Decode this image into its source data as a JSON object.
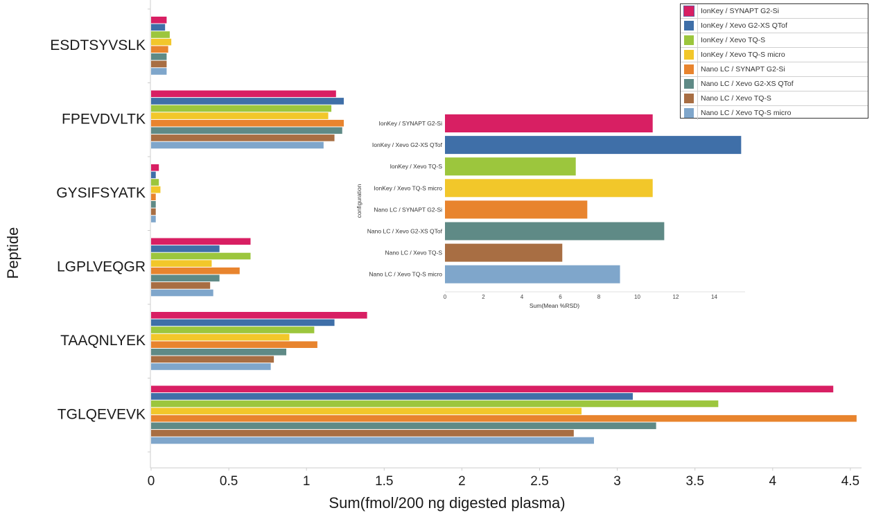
{
  "chart_data": [
    {
      "type": "bar",
      "orientation": "horizontal",
      "title": "",
      "xlabel": "Sum(fmol/200 ng digested plasma)",
      "ylabel": "Peptide",
      "xlim": [
        0,
        4.6
      ],
      "xticks": [
        0,
        0.5,
        1,
        1.5,
        2,
        2.5,
        3,
        3.5,
        4,
        4.5
      ],
      "xtick_labels": [
        "0",
        "0.5",
        "1",
        "1.5",
        "2",
        "2.5",
        "3",
        "3.5",
        "4",
        "4.5"
      ],
      "grid": false,
      "legend": "top-right",
      "categories": [
        "ESDTSYVSLK",
        "FPEVDVLTK",
        "GYSIFSYATK",
        "LGPLVEQGR",
        "TAAQNLYEK",
        "TGLQEVEVK"
      ],
      "series": [
        {
          "name": "IonKey / SYNAPT G2-Si",
          "color": "#d81f63",
          "values": [
            0.1,
            1.19,
            0.05,
            0.64,
            1.39,
            4.39
          ]
        },
        {
          "name": "IonKey / Xevo G2-XS QTof",
          "color": "#3f6fa8",
          "values": [
            0.09,
            1.24,
            0.03,
            0.44,
            1.18,
            3.1
          ]
        },
        {
          "name": "IonKey / Xevo TQ-S",
          "color": "#9cc63d",
          "values": [
            0.12,
            1.16,
            0.05,
            0.64,
            1.05,
            3.65
          ]
        },
        {
          "name": "IonKey / Xevo TQ-S micro",
          "color": "#f2c72a",
          "values": [
            0.13,
            1.14,
            0.06,
            0.39,
            0.89,
            2.77
          ]
        },
        {
          "name": "Nano LC / SYNAPT G2-Si",
          "color": "#e8842e",
          "values": [
            0.11,
            1.24,
            0.03,
            0.57,
            1.07,
            4.54
          ]
        },
        {
          "name": "Nano LC / Xevo G2-XS QTof",
          "color": "#5f8a86",
          "values": [
            0.1,
            1.23,
            0.03,
            0.44,
            0.87,
            3.25
          ]
        },
        {
          "name": "Nano LC / Xevo TQ-S",
          "color": "#a86e43",
          "values": [
            0.1,
            1.18,
            0.03,
            0.38,
            0.79,
            2.72
          ]
        },
        {
          "name": "Nano LC / Xevo TQ-S micro",
          "color": "#7fa6cb",
          "values": [
            0.1,
            1.11,
            0.03,
            0.4,
            0.77,
            2.85
          ]
        }
      ]
    },
    {
      "type": "bar",
      "orientation": "horizontal",
      "title": "",
      "xlabel": "Sum(Mean %RSD)",
      "ylabel": "configuration",
      "xlim": [
        0,
        15.6
      ],
      "xticks": [
        0,
        2,
        4,
        6,
        8,
        10,
        12,
        14
      ],
      "xtick_labels": [
        "0",
        "2",
        "4",
        "6",
        "8",
        "10",
        "12",
        "14"
      ],
      "grid": false,
      "categories": [
        "IonKey / SYNAPT G2-Si",
        "IonKey / Xevo G2-XS QTof",
        "IonKey / Xevo TQ-S",
        "IonKey / Xevo TQ-S micro",
        "Nano LC / SYNAPT G2-Si",
        "Nano LC / Xevo G2-XS QTof",
        "Nano LC / Xevo TQ-S",
        "Nano LC / Xevo TQ-S micro"
      ],
      "colors": [
        "#d81f63",
        "#3f6fa8",
        "#9cc63d",
        "#f2c72a",
        "#e8842e",
        "#5f8a86",
        "#a86e43",
        "#7fa6cb"
      ],
      "values": [
        10.8,
        15.4,
        6.8,
        10.8,
        7.4,
        11.4,
        6.1,
        9.1
      ]
    }
  ],
  "legend": {
    "items": [
      {
        "label": "IonKey / SYNAPT G2-Si",
        "color": "#d81f63",
        "selected": true
      },
      {
        "label": "IonKey / Xevo G2-XS QTof",
        "color": "#3f6fa8"
      },
      {
        "label": "IonKey / Xevo TQ-S",
        "color": "#9cc63d"
      },
      {
        "label": "IonKey / Xevo TQ-S micro",
        "color": "#f2c72a"
      },
      {
        "label": "Nano LC / SYNAPT G2-Si",
        "color": "#e8842e"
      },
      {
        "label": "Nano LC / Xevo G2-XS QTof",
        "color": "#5f8a86"
      },
      {
        "label": "Nano LC / Xevo TQ-S",
        "color": "#a86e43"
      },
      {
        "label": "Nano LC / Xevo TQ-S micro",
        "color": "#7fa6cb"
      }
    ]
  }
}
